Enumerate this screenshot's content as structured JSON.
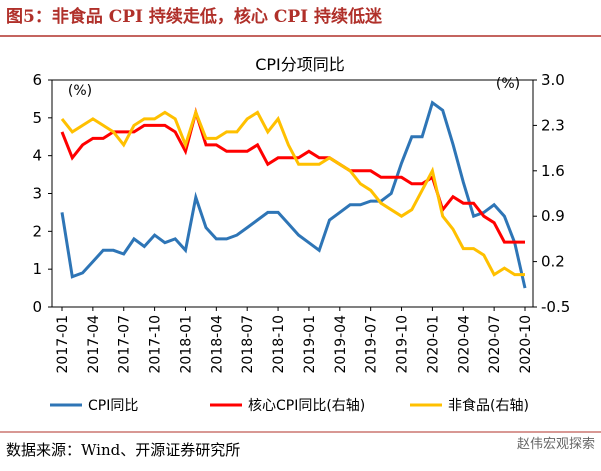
{
  "header": {
    "title": "图5：非食品 CPI 持续走低，核心 CPI 持续低迷"
  },
  "chart_data": {
    "type": "line",
    "title": "CPI分项同比",
    "ylabel": "(%)",
    "y2label": "(%)",
    "categories": [
      "2017-01",
      null,
      null,
      "2017-04",
      null,
      null,
      "2017-07",
      null,
      null,
      "2017-10",
      null,
      null,
      "2018-01",
      null,
      null,
      "2018-04",
      null,
      null,
      "2018-07",
      null,
      null,
      "2018-10",
      null,
      null,
      "2019-01",
      null,
      null,
      "2019-04",
      null,
      null,
      "2019-07",
      null,
      null,
      "2019-10",
      null,
      null,
      "2020-01",
      null,
      null,
      "2020-04",
      null,
      null,
      "2020-07",
      null,
      null,
      "2020-10"
    ],
    "series": [
      {
        "name": "CPI同比",
        "color": "#2e75b6",
        "axis": "y",
        "values": [
          2.5,
          0.8,
          0.9,
          1.2,
          1.5,
          1.5,
          1.4,
          1.8,
          1.6,
          1.9,
          1.7,
          1.8,
          1.5,
          2.9,
          2.1,
          1.8,
          1.8,
          1.9,
          2.1,
          2.3,
          2.5,
          2.5,
          2.2,
          1.9,
          1.7,
          1.5,
          2.3,
          2.5,
          2.7,
          2.7,
          2.8,
          2.8,
          3.0,
          3.8,
          4.5,
          4.5,
          5.4,
          5.2,
          4.3,
          3.3,
          2.4,
          2.5,
          2.7,
          2.4,
          1.7,
          0.5
        ]
      },
      {
        "name": "核心CPI同比(右轴)",
        "color": "#ff0000",
        "axis": "y2",
        "values": [
          2.2,
          1.8,
          2.0,
          2.1,
          2.1,
          2.2,
          2.2,
          2.2,
          2.3,
          2.3,
          2.3,
          2.2,
          1.9,
          2.5,
          2.0,
          2.0,
          1.9,
          1.9,
          1.9,
          2.0,
          1.7,
          1.8,
          1.8,
          1.8,
          1.9,
          1.8,
          1.8,
          1.7,
          1.6,
          1.6,
          1.6,
          1.5,
          1.5,
          1.5,
          1.4,
          1.4,
          1.5,
          1.0,
          1.2,
          1.1,
          1.1,
          0.9,
          0.8,
          0.5,
          0.5,
          0.5
        ]
      },
      {
        "name": "非食品(右轴)",
        "color": "#ffc000",
        "axis": "y2",
        "values": [
          2.4,
          2.2,
          2.3,
          2.4,
          2.3,
          2.2,
          2.0,
          2.3,
          2.4,
          2.4,
          2.5,
          2.4,
          2.0,
          2.5,
          2.1,
          2.1,
          2.2,
          2.2,
          2.4,
          2.5,
          2.2,
          2.4,
          2.0,
          1.7,
          1.7,
          1.7,
          1.8,
          1.7,
          1.6,
          1.4,
          1.3,
          1.1,
          1.0,
          0.9,
          1.0,
          1.3,
          1.6,
          0.9,
          0.7,
          0.4,
          0.4,
          0.3,
          0.0,
          0.1,
          0.0,
          0.0
        ]
      }
    ],
    "ylim": [
      0,
      6
    ],
    "yticks": [
      0,
      1,
      2,
      3,
      4,
      5,
      6
    ],
    "y2lim": [
      -0.5,
      3
    ],
    "y2ticks": [
      -0.5,
      0.2,
      0.9,
      1.6,
      2.3,
      {
        "value": 3,
        "label": "3.0"
      }
    ]
  },
  "footer": {
    "source": "数据来源：Wind、开源证券研究所",
    "watermark": "赵伟宏观探索"
  }
}
